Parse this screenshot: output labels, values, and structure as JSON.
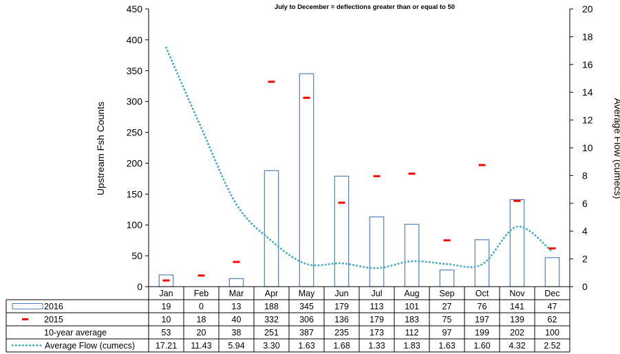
{
  "chart_data": {
    "type": "bar",
    "title": "July to December = deflections greater than or equal to 50",
    "ylabel": "Upstream  Fsh Counts",
    "y2label": "Average Flow (cumecs)",
    "ylim": [
      0,
      450
    ],
    "yticks": [
      0,
      50,
      100,
      150,
      200,
      250,
      300,
      350,
      400,
      450
    ],
    "y2lim": [
      0,
      20
    ],
    "y2ticks": [
      0,
      2,
      4,
      6,
      8,
      10,
      12,
      14,
      16,
      18,
      20
    ],
    "grid": false,
    "categories": [
      "Jan",
      "Feb",
      "Mar",
      "Apr",
      "May",
      "Jun",
      "Jul",
      "Aug",
      "Sep",
      "Oct",
      "Nov",
      "Dec"
    ],
    "series": [
      {
        "name": "2016",
        "kind": "bar",
        "axis": "left",
        "color": "#4f81bd",
        "values": [
          19,
          0,
          13,
          188,
          345,
          179,
          113,
          101,
          27,
          76,
          141,
          47
        ],
        "labels": [
          "19",
          "0",
          "13",
          "188",
          "345",
          "179",
          "113",
          "101",
          "27",
          "76",
          "141",
          "47"
        ]
      },
      {
        "name": "2015",
        "kind": "marker",
        "axis": "left",
        "color": "#ff0000",
        "values": [
          10,
          18,
          40,
          332,
          306,
          136,
          179,
          183,
          75,
          197,
          139,
          62
        ],
        "labels": [
          "10",
          "18",
          "40",
          "332",
          "306",
          "136",
          "179",
          "183",
          "75",
          "197",
          "139",
          "62"
        ]
      },
      {
        "name": "10-year average",
        "kind": "none",
        "axis": "left",
        "color": "#000000",
        "values": [
          53,
          20,
          38,
          251,
          387,
          235,
          173,
          112,
          97,
          199,
          202,
          100
        ],
        "labels": [
          "53",
          "20",
          "38",
          "251",
          "387",
          "235",
          "173",
          "112",
          "97",
          "199",
          "202",
          "100"
        ]
      },
      {
        "name": "Average Flow (cumecs)",
        "kind": "line",
        "axis": "right",
        "color": "#4bacc6",
        "values": [
          17.21,
          11.43,
          5.94,
          3.3,
          1.63,
          1.68,
          1.33,
          1.83,
          1.63,
          1.6,
          4.32,
          2.52
        ],
        "labels": [
          "17.21",
          "11.43",
          "5.94",
          "3.30",
          "1.63",
          "1.68",
          "1.33",
          "1.83",
          "1.63",
          "1.60",
          "4.32",
          "2.52"
        ]
      }
    ]
  }
}
